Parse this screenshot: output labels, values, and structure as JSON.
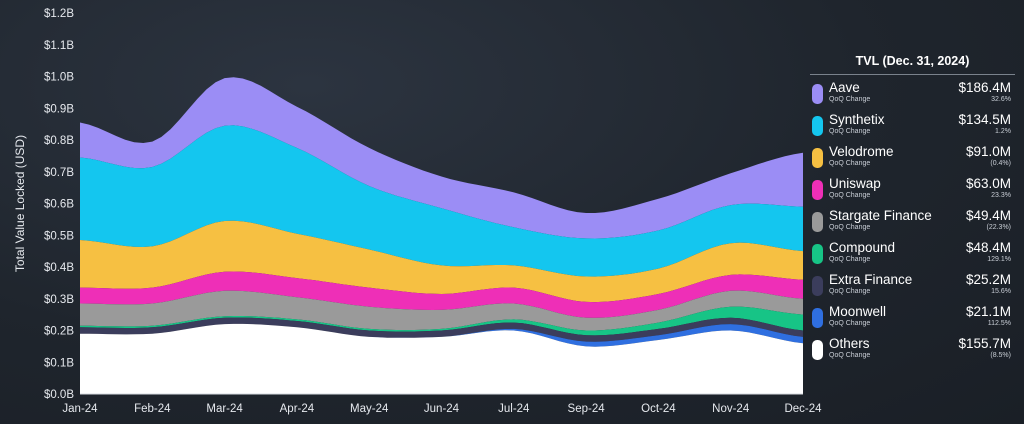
{
  "chart_data": {
    "type": "area",
    "stacked": true,
    "ylabel": "Total Value Locked (USD)",
    "ylim": [
      0,
      1.2
    ],
    "yticks": [
      "$0.0B",
      "$0.1B",
      "$0.2B",
      "$0.3B",
      "$0.4B",
      "$0.5B",
      "$0.6B",
      "$0.7B",
      "$0.8B",
      "$0.9B",
      "$1.0B",
      "$1.1B",
      "$1.2B"
    ],
    "x": [
      "Jan-24",
      "Feb-24",
      "Mar-24",
      "Apr-24",
      "May-24",
      "Jun-24",
      "Jul-24",
      "Sep-24",
      "Oct-24",
      "Nov-24",
      "Dec-24"
    ],
    "xticks": [
      "Jan-24",
      "Feb-24",
      "Mar-24",
      "Apr-24",
      "May-24",
      "Jun-24",
      "Jul-24",
      "Sep-24",
      "Oct-24",
      "Nov-24",
      "Dec-24"
    ],
    "series": [
      {
        "name": "Others",
        "color": "#ffffff",
        "values": [
          0.19,
          0.19,
          0.22,
          0.21,
          0.18,
          0.18,
          0.2,
          0.15,
          0.17,
          0.2,
          0.16
        ]
      },
      {
        "name": "Moonwell",
        "color": "#2f6fe0",
        "values": [
          0.0,
          0.0,
          0.0,
          0.0,
          0.0,
          0.0,
          0.005,
          0.015,
          0.015,
          0.02,
          0.02
        ]
      },
      {
        "name": "Extra Finance",
        "color": "#3b3d5c",
        "values": [
          0.02,
          0.02,
          0.02,
          0.02,
          0.02,
          0.02,
          0.02,
          0.02,
          0.02,
          0.02,
          0.02
        ]
      },
      {
        "name": "Compound",
        "color": "#17c486",
        "values": [
          0.005,
          0.005,
          0.005,
          0.005,
          0.005,
          0.005,
          0.01,
          0.015,
          0.02,
          0.035,
          0.05
        ]
      },
      {
        "name": "Stargate Finance",
        "color": "#9a9a9a",
        "values": [
          0.07,
          0.07,
          0.08,
          0.07,
          0.07,
          0.06,
          0.05,
          0.04,
          0.04,
          0.05,
          0.05
        ]
      },
      {
        "name": "Uniswap",
        "color": "#ee2fb7",
        "values": [
          0.05,
          0.05,
          0.06,
          0.06,
          0.06,
          0.05,
          0.05,
          0.05,
          0.05,
          0.05,
          0.06
        ]
      },
      {
        "name": "Velodrome",
        "color": "#f6c042",
        "values": [
          0.15,
          0.13,
          0.16,
          0.14,
          0.12,
          0.09,
          0.07,
          0.08,
          0.08,
          0.1,
          0.09
        ]
      },
      {
        "name": "Synthetix",
        "color": "#14c6ef",
        "values": [
          0.26,
          0.25,
          0.3,
          0.27,
          0.2,
          0.18,
          0.12,
          0.12,
          0.12,
          0.12,
          0.14
        ]
      },
      {
        "name": "Aave",
        "color": "#9b8df5",
        "values": [
          0.11,
          0.08,
          0.15,
          0.13,
          0.12,
          0.1,
          0.11,
          0.08,
          0.1,
          0.1,
          0.17
        ]
      }
    ]
  },
  "legend": {
    "title": "TVL (Dec. 31, 2024)",
    "sub_label": "QoQ Change",
    "items": [
      {
        "name": "Aave",
        "value": "$186.4M",
        "change": "32.6%",
        "color": "#9b8df5"
      },
      {
        "name": "Synthetix",
        "value": "$134.5M",
        "change": "1.2%",
        "color": "#14c6ef"
      },
      {
        "name": "Velodrome",
        "value": "$91.0M",
        "change": "(0.4%)",
        "color": "#f6c042"
      },
      {
        "name": "Uniswap",
        "value": "$63.0M",
        "change": "23.3%",
        "color": "#ee2fb7"
      },
      {
        "name": "Stargate Finance",
        "value": "$49.4M",
        "change": "(22.3%)",
        "color": "#9a9a9a"
      },
      {
        "name": "Compound",
        "value": "$48.4M",
        "change": "129.1%",
        "color": "#17c486"
      },
      {
        "name": "Extra Finance",
        "value": "$25.2M",
        "change": "15.6%",
        "color": "#3b3d5c"
      },
      {
        "name": "Moonwell",
        "value": "$21.1M",
        "change": "112.5%",
        "color": "#2f6fe0"
      },
      {
        "name": "Others",
        "value": "$155.7M",
        "change": "(8.5%)",
        "color": "#ffffff"
      }
    ]
  }
}
